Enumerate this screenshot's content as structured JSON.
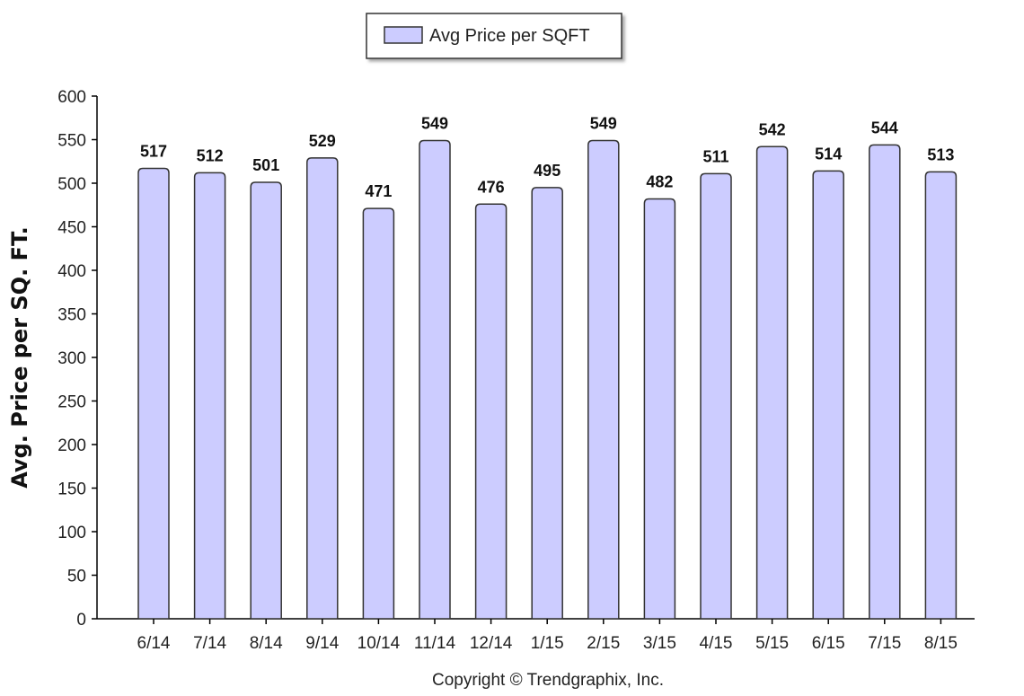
{
  "chart_data": {
    "type": "bar",
    "categories": [
      "6/14",
      "7/14",
      "8/14",
      "9/14",
      "10/14",
      "11/14",
      "12/14",
      "1/15",
      "2/15",
      "3/15",
      "4/15",
      "5/15",
      "6/15",
      "7/15",
      "8/15"
    ],
    "series": [
      {
        "name": "Avg Price per SQFT",
        "values": [
          517,
          512,
          501,
          529,
          471,
          549,
          476,
          495,
          549,
          482,
          511,
          542,
          514,
          544,
          513
        ]
      }
    ],
    "ylabel": "Avg. Price per SQ. FT.",
    "xlabel": "",
    "ylim": [
      0,
      600
    ],
    "yticks": [
      0,
      50,
      100,
      150,
      200,
      250,
      300,
      350,
      400,
      450,
      500,
      550,
      600
    ],
    "grid": false,
    "legend": "top-center",
    "colors": {
      "bar_fill": "#ccccff",
      "bar_stroke": "#333333",
      "axis": "#000000"
    }
  },
  "footer": {
    "copyright": "Copyright © Trendgraphix, Inc."
  }
}
